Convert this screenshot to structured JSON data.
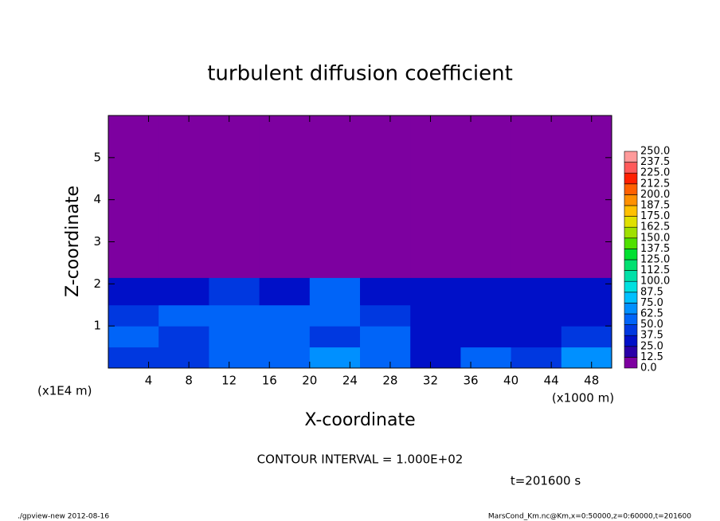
{
  "chart_data": {
    "type": "contour",
    "title": "turbulent diffusion coefficient",
    "x_label": "X-coordinate",
    "y_label": "Z-coordinate",
    "x_unit": "(x1000 m)",
    "y_unit": "(x1E4 m)",
    "annotation": "CONTOUR INTERVAL = 1.000E+02",
    "time_label": "t=201600 s",
    "footer_left": "./gpview-new  2012-08-16",
    "footer_right": "MarsCond_Km.nc@Km,x=0:50000,z=0:60000,t=201600",
    "xlim": [
      0,
      50
    ],
    "ylim": [
      0,
      6
    ],
    "xticks": [
      4,
      8,
      12,
      16,
      20,
      24,
      28,
      32,
      36,
      40,
      44,
      48
    ],
    "yticks": [
      1,
      2,
      3,
      4,
      5
    ],
    "x_edges": [
      0,
      5,
      10,
      15,
      20,
      25,
      30,
      35,
      40,
      45,
      50
    ],
    "y_edges": [
      0,
      0.5,
      1,
      1.5,
      2.15,
      6
    ],
    "values": [
      [
        45,
        40,
        60,
        55,
        70,
        50,
        35,
        60,
        40,
        65
      ],
      [
        60,
        45,
        55,
        60,
        45,
        55,
        30,
        30,
        35,
        45
      ],
      [
        40,
        55,
        60,
        50,
        60,
        45,
        30,
        30,
        30,
        35
      ],
      [
        35,
        30,
        40,
        35,
        55,
        35,
        30,
        30,
        30,
        30
      ],
      [
        0,
        0,
        0,
        0,
        0,
        0,
        0,
        0,
        0,
        0
      ]
    ],
    "levels": [
      {
        "value": 0,
        "label": "0.0"
      },
      {
        "value": 12.5,
        "label": "12.5"
      },
      {
        "value": 25,
        "label": "25.0"
      },
      {
        "value": 37.5,
        "label": "37.5"
      },
      {
        "value": 50,
        "label": "50.0"
      },
      {
        "value": 62.5,
        "label": "62.5"
      },
      {
        "value": 75,
        "label": "75.0"
      },
      {
        "value": 87.5,
        "label": "87.5"
      },
      {
        "value": 100,
        "label": "100.0"
      },
      {
        "value": 112.5,
        "label": "112.5"
      },
      {
        "value": 125,
        "label": "125.0"
      },
      {
        "value": 137.5,
        "label": "137.5"
      },
      {
        "value": 150,
        "label": "150.0"
      },
      {
        "value": 162.5,
        "label": "162.5"
      },
      {
        "value": 175,
        "label": "175.0"
      },
      {
        "value": 187.5,
        "label": "187.5"
      },
      {
        "value": 200,
        "label": "200.0"
      },
      {
        "value": 212.5,
        "label": "212.5"
      },
      {
        "value": 225,
        "label": "225.0"
      },
      {
        "value": 237.5,
        "label": "237.5"
      },
      {
        "value": 250,
        "label": "250.0"
      }
    ],
    "colors": [
      "#7d00a0",
      "#2a00a8",
      "#0010c8",
      "#0038e0",
      "#0064f8",
      "#0090ff",
      "#00c0ff",
      "#00e0e0",
      "#00e0a8",
      "#00e070",
      "#00e030",
      "#50e000",
      "#a0e000",
      "#e0e000",
      "#ffc000",
      "#ff9000",
      "#ff6000",
      "#ff2000",
      "#ff5a5a",
      "#ff9a9a"
    ]
  }
}
